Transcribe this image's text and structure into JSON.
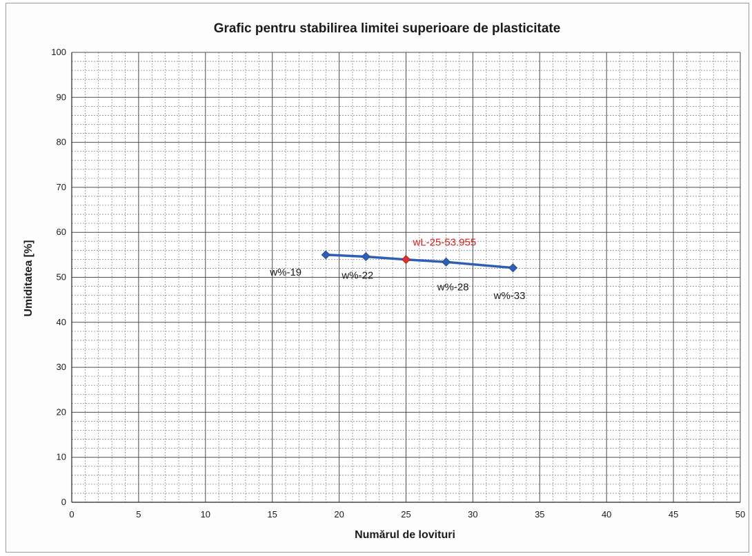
{
  "chart_data": {
    "type": "line",
    "title": "Grafic pentru stabilirea limitei superioare de plasticitate",
    "xlabel": "Numărul de lovituri",
    "ylabel": "Umiditatea [%]",
    "xlim": [
      0,
      50
    ],
    "ylim": [
      0,
      100
    ],
    "xticks": [
      "0",
      "5",
      "10",
      "15",
      "20",
      "25",
      "30",
      "35",
      "40",
      "45",
      "50"
    ],
    "yticks": [
      "0",
      "10",
      "20",
      "30",
      "40",
      "50",
      "60",
      "70",
      "80",
      "90",
      "100"
    ],
    "grid": true,
    "legend": "none",
    "series": [
      {
        "color": "#2f5fb4",
        "points": [
          {
            "x": 19,
            "y": 55.0,
            "label": "w%-19"
          },
          {
            "x": 22,
            "y": 54.6,
            "label": "w%-22"
          },
          {
            "x": 28,
            "y": 53.4,
            "label": "w%-28"
          },
          {
            "x": 33,
            "y": 52.1,
            "label": "w%-33"
          }
        ]
      }
    ],
    "highlight": {
      "x": 25,
      "y": 53.955,
      "label": "wL-25-53.955",
      "color": "#e03030"
    }
  }
}
